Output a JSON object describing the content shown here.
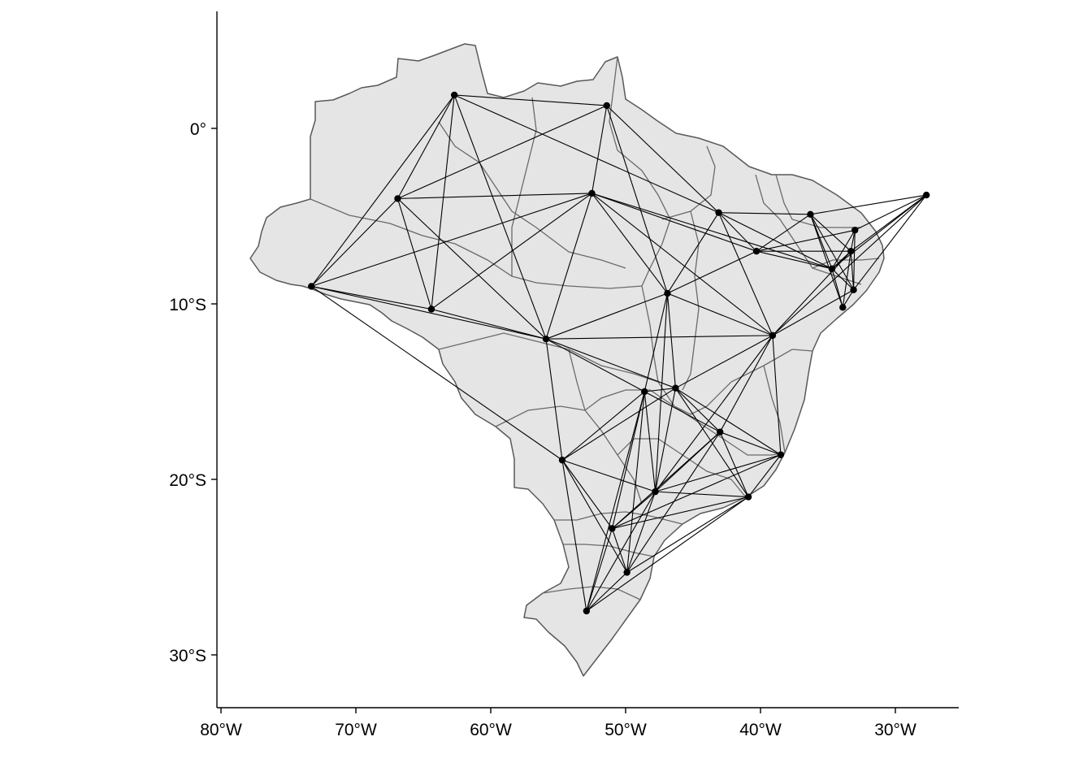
{
  "map": {
    "x_axis": {
      "ticks": [
        {
          "lon": -80,
          "label": "80°W"
        },
        {
          "lon": -70,
          "label": "70°W"
        },
        {
          "lon": -60,
          "label": "60°W"
        },
        {
          "lon": -50,
          "label": "50°W"
        },
        {
          "lon": -40,
          "label": "40°W"
        },
        {
          "lon": -30,
          "label": "30°W"
        }
      ]
    },
    "y_axis": {
      "ticks": [
        {
          "lat": 0,
          "label": "0°"
        },
        {
          "lat": -10,
          "label": "10°S"
        },
        {
          "lat": -20,
          "label": "20°S"
        },
        {
          "lat": -30,
          "label": "30°S"
        }
      ]
    },
    "colors": {
      "land_fill": "#e5e5e5",
      "border": "#595959",
      "edge": "#000000",
      "node": "#000000"
    },
    "nodes": [
      {
        "id": "n1",
        "lon": -62.7,
        "lat": 1.9
      },
      {
        "id": "n2",
        "lon": -51.4,
        "lat": 1.3
      },
      {
        "id": "n3",
        "lon": -66.9,
        "lat": -4.0
      },
      {
        "id": "n4",
        "lon": -52.5,
        "lat": -3.7
      },
      {
        "id": "n5",
        "lon": -43.1,
        "lat": -4.8
      },
      {
        "id": "n6",
        "lon": -36.3,
        "lat": -4.9
      },
      {
        "id": "n7",
        "lon": -27.7,
        "lat": -3.8
      },
      {
        "id": "n8",
        "lon": -40.3,
        "lat": -7.0
      },
      {
        "id": "n9",
        "lon": -33.0,
        "lat": -5.8
      },
      {
        "id": "n10",
        "lon": -33.3,
        "lat": -7.0
      },
      {
        "id": "n11",
        "lon": -34.7,
        "lat": -8.0
      },
      {
        "id": "n12",
        "lon": -33.1,
        "lat": -9.2
      },
      {
        "id": "n13",
        "lon": -33.9,
        "lat": -10.2
      },
      {
        "id": "n14",
        "lon": -73.3,
        "lat": -9.0
      },
      {
        "id": "n15",
        "lon": -64.4,
        "lat": -10.3
      },
      {
        "id": "n16",
        "lon": -46.9,
        "lat": -9.4
      },
      {
        "id": "n17",
        "lon": -55.9,
        "lat": -12.0
      },
      {
        "id": "n18",
        "lon": -39.1,
        "lat": -11.8
      },
      {
        "id": "n19",
        "lon": -48.6,
        "lat": -15.0
      },
      {
        "id": "n20",
        "lon": -46.3,
        "lat": -14.8
      },
      {
        "id": "n21",
        "lon": -43.0,
        "lat": -17.3
      },
      {
        "id": "n22",
        "lon": -38.5,
        "lat": -18.6
      },
      {
        "id": "n23",
        "lon": -54.7,
        "lat": -18.9
      },
      {
        "id": "n24",
        "lon": -47.8,
        "lat": -20.7
      },
      {
        "id": "n25",
        "lon": -40.9,
        "lat": -21.0
      },
      {
        "id": "n26",
        "lon": -51.0,
        "lat": -22.8
      },
      {
        "id": "n27",
        "lon": -49.9,
        "lat": -25.3
      },
      {
        "id": "n28",
        "lon": -52.9,
        "lat": -27.5
      }
    ],
    "edges": [
      [
        "n1",
        "n2"
      ],
      [
        "n1",
        "n3"
      ],
      [
        "n1",
        "n14"
      ],
      [
        "n1",
        "n15"
      ],
      [
        "n1",
        "n17"
      ],
      [
        "n1",
        "n5"
      ],
      [
        "n2",
        "n3"
      ],
      [
        "n2",
        "n4"
      ],
      [
        "n2",
        "n5"
      ],
      [
        "n2",
        "n16"
      ],
      [
        "n3",
        "n14"
      ],
      [
        "n3",
        "n4"
      ],
      [
        "n3",
        "n15"
      ],
      [
        "n3",
        "n17"
      ],
      [
        "n4",
        "n14"
      ],
      [
        "n4",
        "n15"
      ],
      [
        "n4",
        "n17"
      ],
      [
        "n4",
        "n16"
      ],
      [
        "n4",
        "n8"
      ],
      [
        "n4",
        "n18"
      ],
      [
        "n4",
        "n11"
      ],
      [
        "n5",
        "n6"
      ],
      [
        "n5",
        "n8"
      ],
      [
        "n5",
        "n18"
      ],
      [
        "n5",
        "n11"
      ],
      [
        "n5",
        "n16"
      ],
      [
        "n6",
        "n7"
      ],
      [
        "n6",
        "n8"
      ],
      [
        "n6",
        "n11"
      ],
      [
        "n6",
        "n12"
      ],
      [
        "n6",
        "n13"
      ],
      [
        "n6",
        "n10"
      ],
      [
        "n7",
        "n9"
      ],
      [
        "n7",
        "n10"
      ],
      [
        "n7",
        "n12"
      ],
      [
        "n7",
        "n18"
      ],
      [
        "n7",
        "n11"
      ],
      [
        "n8",
        "n10"
      ],
      [
        "n8",
        "n11"
      ],
      [
        "n8",
        "n16"
      ],
      [
        "n8",
        "n9"
      ],
      [
        "n9",
        "n10"
      ],
      [
        "n9",
        "n12"
      ],
      [
        "n9",
        "n11"
      ],
      [
        "n10",
        "n12"
      ],
      [
        "n10",
        "n11"
      ],
      [
        "n10",
        "n13"
      ],
      [
        "n10",
        "n18"
      ],
      [
        "n11",
        "n13"
      ],
      [
        "n11",
        "n12"
      ],
      [
        "n12",
        "n13"
      ],
      [
        "n12",
        "n18"
      ],
      [
        "n14",
        "n15"
      ],
      [
        "n14",
        "n17"
      ],
      [
        "n14",
        "n23"
      ],
      [
        "n15",
        "n17"
      ],
      [
        "n16",
        "n17"
      ],
      [
        "n16",
        "n18"
      ],
      [
        "n16",
        "n19"
      ],
      [
        "n16",
        "n20"
      ],
      [
        "n16",
        "n24"
      ],
      [
        "n17",
        "n18"
      ],
      [
        "n17",
        "n23"
      ],
      [
        "n17",
        "n20"
      ],
      [
        "n17",
        "n19"
      ],
      [
        "n18",
        "n20"
      ],
      [
        "n18",
        "n22"
      ],
      [
        "n18",
        "n21"
      ],
      [
        "n18",
        "n24"
      ],
      [
        "n19",
        "n20"
      ],
      [
        "n19",
        "n23"
      ],
      [
        "n19",
        "n26"
      ],
      [
        "n19",
        "n24"
      ],
      [
        "n19",
        "n21"
      ],
      [
        "n19",
        "n27"
      ],
      [
        "n20",
        "n22"
      ],
      [
        "n20",
        "n21"
      ],
      [
        "n20",
        "n25"
      ],
      [
        "n20",
        "n23"
      ],
      [
        "n20",
        "n24"
      ],
      [
        "n21",
        "n22"
      ],
      [
        "n21",
        "n25"
      ],
      [
        "n21",
        "n24"
      ],
      [
        "n21",
        "n26"
      ],
      [
        "n21",
        "n27"
      ],
      [
        "n22",
        "n25"
      ],
      [
        "n22",
        "n24"
      ],
      [
        "n22",
        "n26"
      ],
      [
        "n23",
        "n26"
      ],
      [
        "n23",
        "n28"
      ],
      [
        "n23",
        "n24"
      ],
      [
        "n23",
        "n27"
      ],
      [
        "n24",
        "n25"
      ],
      [
        "n24",
        "n26"
      ],
      [
        "n24",
        "n27"
      ],
      [
        "n24",
        "n28"
      ],
      [
        "n25",
        "n26"
      ],
      [
        "n25",
        "n27"
      ],
      [
        "n25",
        "n28"
      ],
      [
        "n26",
        "n27"
      ],
      [
        "n26",
        "n28"
      ],
      [
        "n27",
        "n28"
      ],
      [
        "n19",
        "n28"
      ]
    ]
  }
}
